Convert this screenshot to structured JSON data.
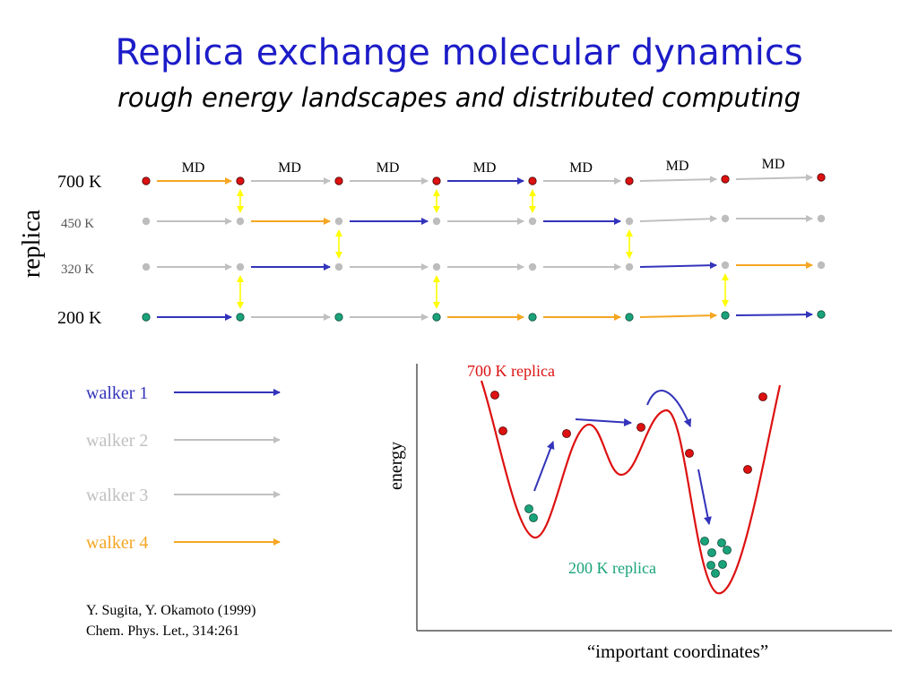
{
  "title": "Replica exchange molecular dynamics",
  "subtitle": "rough energy landscapes and distributed computing",
  "colors": {
    "walker1": "#3333bb",
    "walker2": "#c0c0c0",
    "walker3": "#c0c0c0",
    "walker4": "#f5a623",
    "exchange": "#ffff00",
    "hot": "#dd1111",
    "cold": "#1aa37a",
    "grey_dot": "#bdbdbd"
  },
  "grid": {
    "axis_label": "replica",
    "levels": [
      "700 K",
      "450 K",
      "320 K",
      "200 K"
    ],
    "md_labels": [
      "MD",
      "MD",
      "MD",
      "MD",
      "MD",
      "MD",
      "MD"
    ],
    "arrows": [
      [
        "walker4",
        "walker2",
        "walker2",
        "walker1",
        "walker2",
        "walker2",
        "walker2"
      ],
      [
        "walker2",
        "walker4",
        "walker1",
        "walker2",
        "walker1",
        "walker2",
        "walker2"
      ],
      [
        "walker2",
        "walker1",
        "walker2",
        "walker2",
        "walker2",
        "walker1",
        "walker4"
      ],
      [
        "walker1",
        "walker2",
        "walker2",
        "walker4",
        "walker4",
        "walker4",
        "walker1"
      ]
    ],
    "exchanges": [
      {
        "after_step": 1,
        "between": [
          0,
          1
        ]
      },
      {
        "after_step": 1,
        "between": [
          2,
          3
        ]
      },
      {
        "after_step": 2,
        "between": [
          1,
          2
        ]
      },
      {
        "after_step": 3,
        "between": [
          0,
          1
        ]
      },
      {
        "after_step": 3,
        "between": [
          2,
          3
        ]
      },
      {
        "after_step": 4,
        "between": [
          0,
          1
        ]
      },
      {
        "after_step": 5,
        "between": [
          1,
          2
        ]
      },
      {
        "after_step": 6,
        "between": [
          2,
          3
        ]
      }
    ]
  },
  "legend": [
    {
      "label": "walker 1",
      "color": "#3333bb"
    },
    {
      "label": "walker 2",
      "color": "#c0c0c0"
    },
    {
      "label": "walker 3",
      "color": "#c0c0c0"
    },
    {
      "label": "walker 4",
      "color": "#f5a623"
    }
  ],
  "citation": {
    "line1": "Y. Sugita, Y. Okamoto (1999)",
    "line2": "Chem. Phys. Let., 314:261"
  },
  "landscape": {
    "y_label": "energy",
    "x_label": "“important coordinates”",
    "hot_label": "700 K replica",
    "cold_label": "200 K replica"
  }
}
